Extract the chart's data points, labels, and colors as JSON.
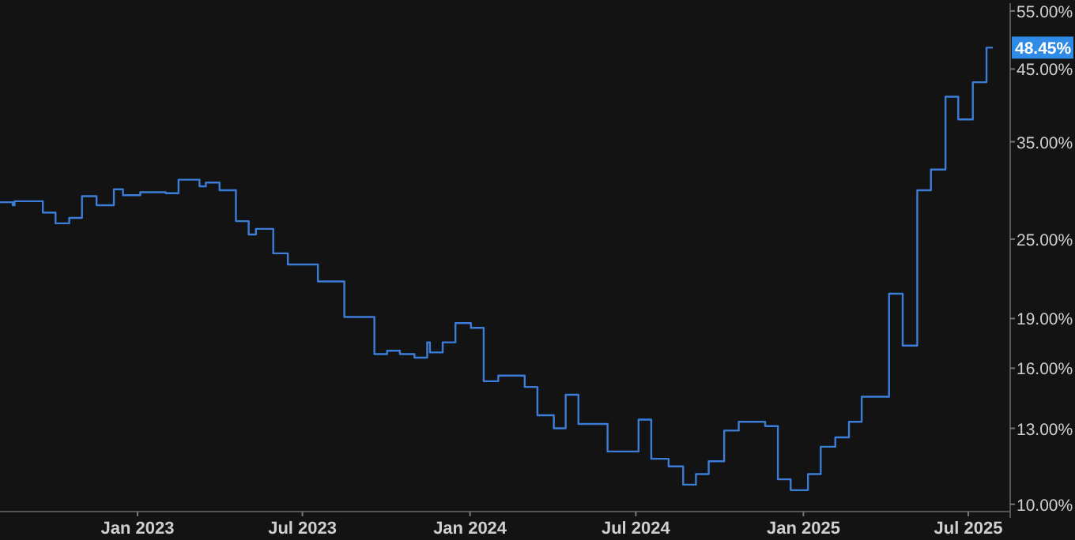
{
  "chart_data": {
    "type": "step",
    "log": true,
    "grid": false,
    "x": [
      "2022-08-03",
      "2022-08-17",
      "2022-08-19",
      "2022-09-19",
      "2022-10-03",
      "2022-10-18",
      "2022-11-01",
      "2022-11-17",
      "2022-12-06",
      "2022-12-16",
      "2023-01-04",
      "2023-02-01",
      "2023-02-15",
      "2023-03-10",
      "2023-03-17",
      "2023-04-01",
      "2023-04-19",
      "2023-05-03",
      "2023-05-11",
      "2023-05-30",
      "2023-06-15",
      "2023-07-18",
      "2023-08-16",
      "2023-09-18",
      "2023-10-02",
      "2023-10-16",
      "2023-11-01",
      "2023-11-15",
      "2023-11-18",
      "2023-12-02",
      "2023-12-16",
      "2024-01-02",
      "2024-01-16",
      "2024-02-01",
      "2024-03-01",
      "2024-03-15",
      "2024-04-02",
      "2024-04-15",
      "2024-04-29",
      "2024-05-31",
      "2024-07-04",
      "2024-07-18",
      "2024-08-06",
      "2024-08-22",
      "2024-09-05",
      "2024-09-19",
      "2024-10-06",
      "2024-10-22",
      "2024-11-20",
      "2024-12-04",
      "2024-12-18",
      "2025-01-06",
      "2025-01-20",
      "2025-02-05",
      "2025-02-20",
      "2025-03-06",
      "2025-04-05",
      "2025-04-20",
      "2025-05-06",
      "2025-05-21",
      "2025-06-06",
      "2025-06-20",
      "2025-07-06",
      "2025-07-21",
      "2025-07-28"
    ],
    "series": [
      {
        "color": "#3b7dd8",
        "values": [
          28.4,
          28.1,
          28.5,
          27.4,
          26.4,
          26.9,
          29.0,
          28.1,
          29.7,
          29.1,
          29.4,
          29.3,
          30.7,
          30.0,
          30.4,
          29.6,
          26.6,
          25.4,
          25.9,
          23.8,
          22.9,
          21.6,
          19.1,
          16.8,
          17.0,
          16.8,
          16.6,
          17.5,
          16.9,
          17.5,
          18.7,
          18.4,
          15.3,
          15.6,
          15.0,
          13.6,
          13.0,
          14.6,
          13.2,
          12.0,
          13.4,
          11.7,
          11.4,
          10.7,
          11.1,
          11.6,
          12.9,
          13.3,
          13.1,
          10.9,
          10.5,
          11.1,
          12.2,
          12.6,
          13.3,
          14.5,
          20.7,
          17.3,
          29.6,
          31.8,
          40.9,
          37.8,
          43.0,
          48.45,
          48.45
        ]
      }
    ],
    "xlim": [
      "2022-08-03",
      "2025-08-16"
    ],
    "xticks": [
      {
        "value": "2023-01-01",
        "label": "Jan 2023"
      },
      {
        "value": "2023-07-01",
        "label": "Jul 2023"
      },
      {
        "value": "2024-01-01",
        "label": "Jan 2024"
      },
      {
        "value": "2024-07-01",
        "label": "Jul 2024"
      },
      {
        "value": "2025-01-01",
        "label": "Jan 2025"
      },
      {
        "value": "2025-07-01",
        "label": "Jul 2025"
      }
    ],
    "ylim": [
      9.75,
      56.5
    ],
    "yticks": [
      {
        "value": 10,
        "label": "10.00%"
      },
      {
        "value": 13,
        "label": "13.00%"
      },
      {
        "value": 16,
        "label": "16.00%"
      },
      {
        "value": 19,
        "label": "19.00%"
      },
      {
        "value": 25,
        "label": "25.00%"
      },
      {
        "value": 35,
        "label": "35.00%"
      },
      {
        "value": 45,
        "label": "45.00%"
      },
      {
        "value": 55,
        "label": "55.00%"
      }
    ],
    "annotations": [
      {
        "text": "48.45%",
        "y": 48.45
      }
    ]
  }
}
